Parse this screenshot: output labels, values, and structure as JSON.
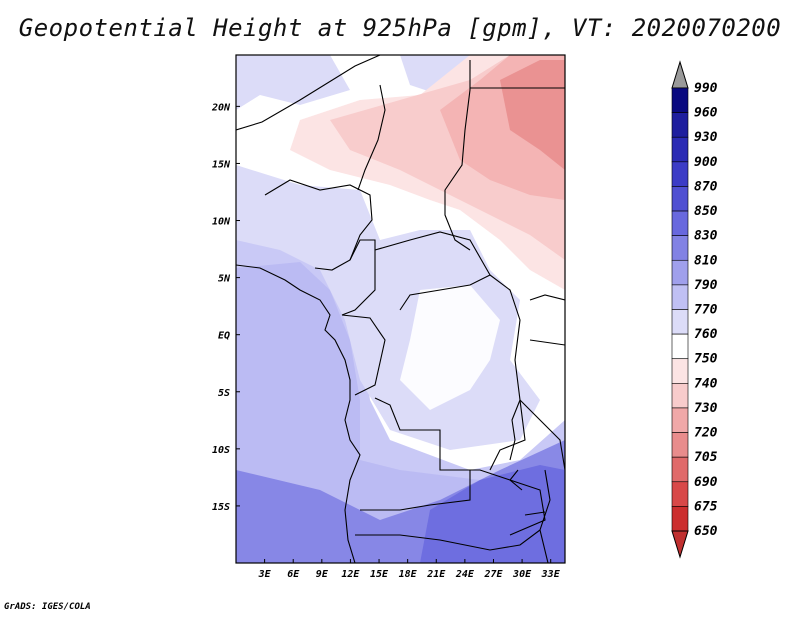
{
  "title": "Geopotential Height at 925hPa [gpm], VT: 2020070200",
  "credit": "GrADS: IGES/COLA",
  "map": {
    "lat_labels": [
      "20N",
      "15N",
      "10N",
      "5N",
      "EQ",
      "5S",
      "10S",
      "15S"
    ],
    "lon_labels": [
      "3E",
      "6E",
      "9E",
      "12E",
      "15E",
      "18E",
      "21E",
      "24E",
      "27E",
      "30E",
      "33E"
    ],
    "lat_range": [
      -20,
      24.5
    ],
    "lon_range": [
      0,
      34.5
    ]
  },
  "colorbar": {
    "levels": [
      "990",
      "960",
      "930",
      "900",
      "870",
      "850",
      "830",
      "810",
      "790",
      "770",
      "760",
      "750",
      "740",
      "730",
      "720",
      "705",
      "690",
      "675",
      "650"
    ],
    "colors": [
      "#0a0a80",
      "#1e1e9e",
      "#2b2bb4",
      "#3c3cc6",
      "#5050d2",
      "#6868de",
      "#8282e4",
      "#a0a0ec",
      "#c0c0f4",
      "#dcdcf8",
      "#ffffff",
      "#fce4e4",
      "#f8cccc",
      "#f0a8a8",
      "#e88c8c",
      "#e06a6a",
      "#d84848",
      "#cc2e2e",
      "#b01818"
    ],
    "over_color": "#9a9a9a",
    "under_color": "#c03030"
  },
  "field_colors": {
    "low_pink": "#f4b4b4",
    "mid_pink": "#f8cccc",
    "pale_pink": "#fce4e4",
    "white": "#ffffff",
    "pale_blue": "#dcdcf8",
    "light_blue": "#c0c0f4",
    "mid_blue": "#a0a0ec",
    "dark_blue": "#8282e4"
  }
}
